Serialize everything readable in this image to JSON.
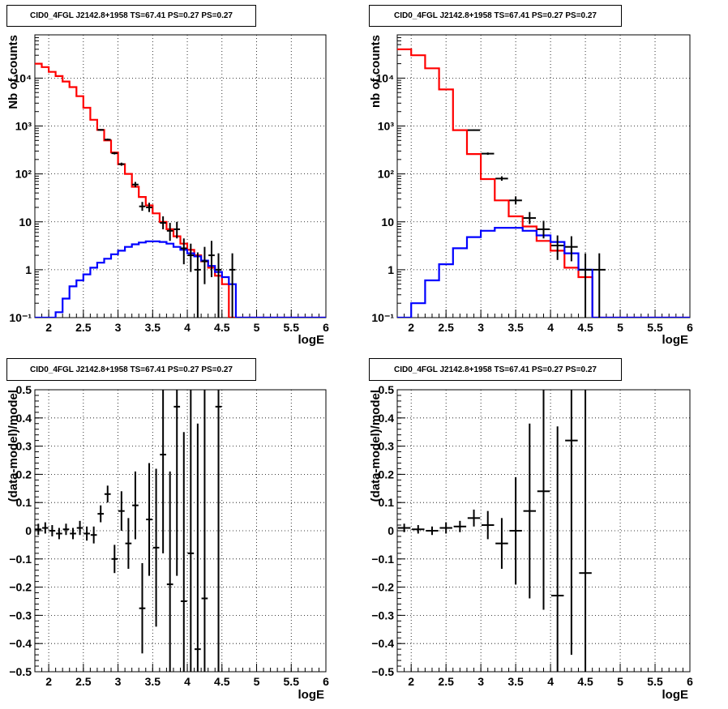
{
  "panels_title": "CID0_4FGL J2142.8+1958 TS=67.41 PS=0.27 PS=0.27",
  "chart_data": [
    {
      "type": "line",
      "title": "CID0_4FGL J2142.8+1958 TS=67.41 PS=0.27 PS=0.27",
      "xlabel": "logE",
      "ylabel": "Nb of counts",
      "xlim": [
        1.8,
        6
      ],
      "ylim": [
        0.1,
        80000
      ],
      "yscale": "log",
      "grid": true,
      "xticks": [
        "2",
        "2.5",
        "3",
        "3.5",
        "4",
        "4.5",
        "5",
        "5.5",
        "6"
      ],
      "yticks": [
        "10⁻¹",
        "1",
        "10",
        "10²",
        "10³",
        "10⁴"
      ],
      "series": [
        {
          "color": "#ff0000",
          "style": "step",
          "bin_width": 0.1,
          "x_start": 1.8,
          "values": [
            20000,
            17000,
            13500,
            11000,
            8500,
            6500,
            4200,
            2400,
            1350,
            830,
            500,
            280,
            160,
            100,
            54,
            33,
            22,
            15,
            10,
            7,
            5,
            3.5,
            2.6,
            2,
            1.5,
            1.1,
            0.75,
            0.5,
            0.1,
            0.1,
            0.1,
            0.1,
            0.1,
            0.1,
            0.1,
            0.1,
            0.1,
            0.1,
            0.1,
            0.1,
            0.1,
            0.1
          ]
        },
        {
          "color": "#0000ff",
          "style": "step",
          "bin_width": 0.1,
          "x_start": 1.8,
          "values": [
            0.06,
            0.08,
            0.1,
            0.13,
            0.25,
            0.45,
            0.6,
            0.8,
            1.1,
            1.4,
            1.7,
            2.1,
            2.5,
            3.0,
            3.4,
            3.7,
            3.9,
            3.9,
            3.8,
            3.5,
            3.0,
            2.6,
            2.2,
            1.9,
            1.55,
            1.2,
            0.9,
            0.7,
            0.5,
            0.1,
            0.1,
            0.1,
            0.1,
            0.1,
            0.1,
            0.1,
            0.1,
            0.1,
            0.1,
            0.1,
            0.1,
            0.1
          ]
        }
      ],
      "points": [
        {
          "x": 2.75,
          "y": 830,
          "ylo": 800,
          "yhi": 860
        },
        {
          "x": 2.85,
          "y": 520,
          "ylo": 500,
          "yhi": 545
        },
        {
          "x": 2.95,
          "y": 270,
          "ylo": 255,
          "yhi": 285
        },
        {
          "x": 3.05,
          "y": 160,
          "ylo": 148,
          "yhi": 172
        },
        {
          "x": 3.25,
          "y": 60,
          "ylo": 53,
          "yhi": 68
        },
        {
          "x": 3.35,
          "y": 21,
          "ylo": 17,
          "yhi": 26
        },
        {
          "x": 3.45,
          "y": 20,
          "ylo": 16,
          "yhi": 25
        },
        {
          "x": 3.65,
          "y": 9.5,
          "ylo": 7,
          "yhi": 13
        },
        {
          "x": 3.75,
          "y": 6.5,
          "ylo": 4,
          "yhi": 9.5
        },
        {
          "x": 3.85,
          "y": 7.0,
          "ylo": 4.5,
          "yhi": 10
        },
        {
          "x": 3.95,
          "y": 2.8,
          "ylo": 1.3,
          "yhi": 4.5
        },
        {
          "x": 4.05,
          "y": 2.0,
          "ylo": 0.9,
          "yhi": 3.5
        },
        {
          "x": 4.15,
          "y": 1.0,
          "ylo": 0.1,
          "yhi": 2.3
        },
        {
          "x": 4.25,
          "y": 1.5,
          "ylo": 0.5,
          "yhi": 3.0
        },
        {
          "x": 4.35,
          "y": 2.0,
          "ylo": 0.7,
          "yhi": 4.0
        },
        {
          "x": 4.45,
          "y": 1.0,
          "ylo": 0.1,
          "yhi": 2.2
        },
        {
          "x": 4.65,
          "y": 1.0,
          "ylo": 0.1,
          "yhi": 2.2
        }
      ]
    },
    {
      "type": "line",
      "title": "CID0_4FGL J2142.8+1958 TS=67.41 PS=0.27 PS=0.27",
      "xlabel": "logE",
      "ylabel": "nb of counts",
      "xlim": [
        1.8,
        6
      ],
      "ylim": [
        0.1,
        80000
      ],
      "yscale": "log",
      "grid": true,
      "xticks": [
        "2",
        "2.5",
        "3",
        "3.5",
        "4",
        "4.5",
        "5",
        "5.5",
        "6"
      ],
      "yticks": [
        "10⁻¹",
        "1",
        "10",
        "10²",
        "10³",
        "10⁴"
      ],
      "series": [
        {
          "color": "#ff0000",
          "style": "step",
          "bin_width": 0.2,
          "x_start": 1.8,
          "values": [
            40000,
            30000,
            16000,
            5800,
            820,
            260,
            78,
            28,
            13,
            8,
            4,
            2.5,
            1.1,
            0.7,
            0.1,
            0.1,
            0.1,
            0.1,
            0.1,
            0.1,
            0.1
          ]
        },
        {
          "color": "#0000ff",
          "style": "step",
          "bin_width": 0.2,
          "x_start": 1.8,
          "values": [
            0.08,
            0.2,
            0.6,
            1.3,
            2.8,
            4.8,
            6.5,
            7.5,
            7.5,
            6.5,
            5.2,
            3.8,
            2.2,
            1.0,
            0.1,
            0.1,
            0.1,
            0.1,
            0.1,
            0.1,
            0.1
          ]
        }
      ],
      "points": [
        {
          "x": 2.9,
          "y": 820,
          "ylo": 795,
          "yhi": 845
        },
        {
          "x": 3.1,
          "y": 265,
          "ylo": 250,
          "yhi": 280
        },
        {
          "x": 3.3,
          "y": 80,
          "ylo": 72,
          "yhi": 89
        },
        {
          "x": 3.5,
          "y": 28,
          "ylo": 23,
          "yhi": 34
        },
        {
          "x": 3.7,
          "y": 12,
          "ylo": 9,
          "yhi": 16
        },
        {
          "x": 3.9,
          "y": 7,
          "ylo": 4.5,
          "yhi": 10.5
        },
        {
          "x": 4.1,
          "y": 3.2,
          "ylo": 1.6,
          "yhi": 5.2
        },
        {
          "x": 4.3,
          "y": 3.0,
          "ylo": 1.5,
          "yhi": 5.0
        },
        {
          "x": 4.5,
          "y": 1.0,
          "ylo": 0.1,
          "yhi": 2.2
        },
        {
          "x": 4.7,
          "y": 1.0,
          "ylo": 0.1,
          "yhi": 2.2
        }
      ]
    },
    {
      "type": "scatter",
      "title": "CID0_4FGL J2142.8+1958 TS=67.41 PS=0.27 PS=0.27",
      "xlabel": "logE",
      "ylabel": "(data-model)/model",
      "xlim": [
        1.8,
        6
      ],
      "ylim": [
        -0.5,
        0.5
      ],
      "grid": true,
      "xticks": [
        "2",
        "2.5",
        "3",
        "3.5",
        "4",
        "4.5",
        "5",
        "5.5",
        "6"
      ],
      "yticks": [
        "−0.5",
        "−0.4",
        "−0.3",
        "−0.2",
        "−0.1",
        "0",
        "0.1",
        "0.2",
        "0.3",
        "0.4",
        "0.5"
      ],
      "bin_width": 0.1,
      "points": [
        {
          "x": 1.85,
          "y": 0.005,
          "err": 0.02
        },
        {
          "x": 1.95,
          "y": 0.01,
          "err": 0.02
        },
        {
          "x": 2.05,
          "y": 0.0,
          "err": 0.02
        },
        {
          "x": 2.15,
          "y": -0.01,
          "err": 0.02
        },
        {
          "x": 2.25,
          "y": 0.005,
          "err": 0.02
        },
        {
          "x": 2.35,
          "y": -0.01,
          "err": 0.02
        },
        {
          "x": 2.45,
          "y": 0.01,
          "err": 0.025
        },
        {
          "x": 2.55,
          "y": -0.01,
          "err": 0.025
        },
        {
          "x": 2.65,
          "y": -0.015,
          "err": 0.03
        },
        {
          "x": 2.75,
          "y": 0.06,
          "err": 0.03
        },
        {
          "x": 2.85,
          "y": 0.13,
          "err": 0.03
        },
        {
          "x": 2.95,
          "y": -0.1,
          "err": 0.05
        },
        {
          "x": 3.05,
          "y": 0.07,
          "err": 0.07
        },
        {
          "x": 3.15,
          "y": -0.045,
          "err": 0.09
        },
        {
          "x": 3.25,
          "y": 0.09,
          "err": 0.12
        },
        {
          "x": 3.35,
          "y": -0.275,
          "err": 0.16
        },
        {
          "x": 3.45,
          "y": 0.04,
          "err": 0.2
        },
        {
          "x": 3.55,
          "y": -0.06,
          "err": 0.28
        },
        {
          "x": 3.65,
          "y": 0.27,
          "err": 0.35
        },
        {
          "x": 3.75,
          "y": -0.19,
          "err": 0.4
        },
        {
          "x": 3.85,
          "y": 0.44,
          "err": 0.6
        },
        {
          "x": 3.95,
          "y": -0.25,
          "err": 0.6
        },
        {
          "x": 4.05,
          "y": -0.08,
          "err": 0.6
        },
        {
          "x": 4.15,
          "y": -0.42,
          "err": 0.8
        },
        {
          "x": 4.25,
          "y": -0.24,
          "err": 0.8
        },
        {
          "x": 4.45,
          "y": 0.44,
          "err": 1.0
        }
      ]
    },
    {
      "type": "scatter",
      "title": "CID0_4FGL J2142.8+1958 TS=67.41 PS=0.27 PS=0.27",
      "xlabel": "logE",
      "ylabel": "(data-model)/model",
      "xlim": [
        1.8,
        6
      ],
      "ylim": [
        -0.5,
        0.5
      ],
      "grid": true,
      "xticks": [
        "2",
        "2.5",
        "3",
        "3.5",
        "4",
        "4.5",
        "5",
        "5.5",
        "6"
      ],
      "yticks": [
        "−0.5",
        "−0.4",
        "−0.3",
        "−0.2",
        "−0.1",
        "0",
        "0.1",
        "0.2",
        "0.3",
        "0.4",
        "0.5"
      ],
      "bin_width": 0.2,
      "points": [
        {
          "x": 1.9,
          "y": 0.01,
          "err": 0.015
        },
        {
          "x": 2.1,
          "y": 0.005,
          "err": 0.015
        },
        {
          "x": 2.3,
          "y": 0.0,
          "err": 0.015
        },
        {
          "x": 2.5,
          "y": 0.01,
          "err": 0.02
        },
        {
          "x": 2.7,
          "y": 0.015,
          "err": 0.02
        },
        {
          "x": 2.9,
          "y": 0.045,
          "err": 0.03
        },
        {
          "x": 3.1,
          "y": 0.02,
          "err": 0.05
        },
        {
          "x": 3.3,
          "y": -0.045,
          "err": 0.09
        },
        {
          "x": 3.5,
          "y": 0.0,
          "err": 0.19
        },
        {
          "x": 3.7,
          "y": 0.07,
          "err": 0.31
        },
        {
          "x": 3.9,
          "y": 0.14,
          "err": 0.42
        },
        {
          "x": 4.1,
          "y": -0.23,
          "err": 0.6
        },
        {
          "x": 4.3,
          "y": 0.32,
          "err": 0.76
        },
        {
          "x": 4.5,
          "y": -0.15,
          "err": 1.0
        }
      ]
    }
  ]
}
